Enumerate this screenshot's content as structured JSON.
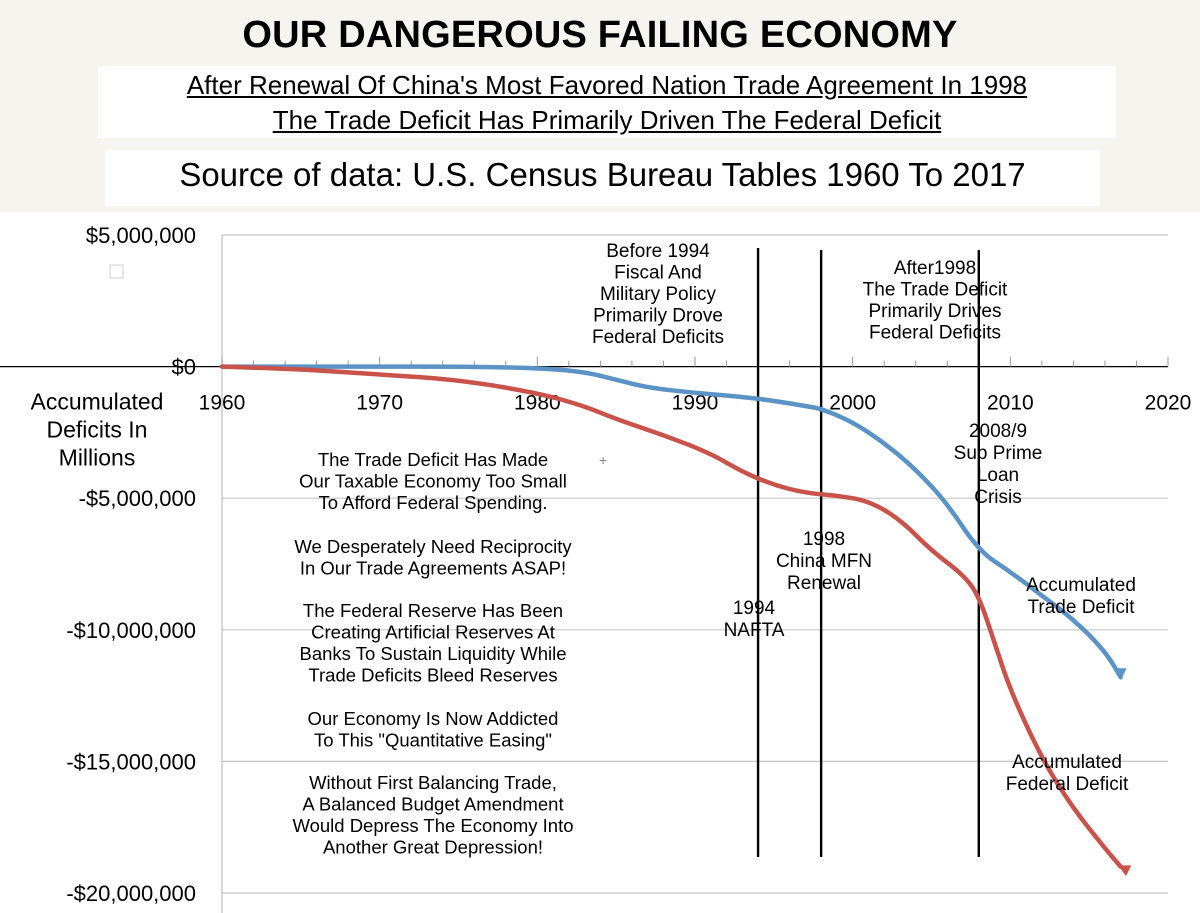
{
  "header": {
    "title": "OUR DANGEROUS FAILING ECONOMY",
    "subtitle_line1": "After Renewal Of China's Most Favored Nation Trade Agreement In 1998",
    "subtitle_line2": "The Trade Deficit Has Primarily Driven The Federal Deficit",
    "source": "Source of data:  U.S. Census Bureau Tables 1960 To 2017"
  },
  "chart_data": {
    "type": "line",
    "title": "OUR DANGEROUS FAILING ECONOMY",
    "ylabel_lines": [
      "Accumulated",
      "Deficits In",
      "Millions"
    ],
    "xlabel": "",
    "xlim": [
      1960,
      2020
    ],
    "ylim": [
      -20000000,
      5000000
    ],
    "x_ticks": [
      1960,
      1970,
      1980,
      1990,
      2000,
      2010,
      2020
    ],
    "x_tick_labels": [
      "1960",
      "1970",
      "1980",
      "1990",
      "2000",
      "2010",
      "2020"
    ],
    "y_ticks": [
      5000000,
      0,
      -5000000,
      -10000000,
      -15000000,
      -20000000
    ],
    "y_tick_labels": [
      "$5,000,000",
      "$0",
      "-$5,000,000",
      "-$10,000,000",
      "-$15,000,000",
      "-$20,000,000"
    ],
    "grid": true,
    "series": [
      {
        "name": "Accumulated Trade Deficit",
        "label_lines": [
          "Accumulated",
          "Trade Deficit"
        ],
        "color": "#5b93c7",
        "x": [
          1960,
          1965,
          1970,
          1975,
          1980,
          1983,
          1985,
          1987,
          1990,
          1993,
          1995,
          1997,
          1998,
          2000,
          2002,
          2004,
          2006,
          2008,
          2010,
          2012,
          2014,
          2016,
          2017
        ],
        "values": [
          0,
          0,
          0,
          0,
          -50000,
          -200000,
          -500000,
          -800000,
          -1000000,
          -1150000,
          -1300000,
          -1500000,
          -1600000,
          -2100000,
          -2900000,
          -3900000,
          -5200000,
          -7000000,
          -7800000,
          -8700000,
          -9600000,
          -10800000,
          -11800000
        ]
      },
      {
        "name": "Accumulated Federal Deficit",
        "label_lines": [
          "Accumulated",
          "Federal Deficit"
        ],
        "color": "#c9534b",
        "x": [
          1960,
          1965,
          1970,
          1975,
          1980,
          1983,
          1985,
          1988,
          1991,
          1993,
          1995,
          1997,
          1999,
          2001,
          2003,
          2005,
          2007,
          2008,
          2009,
          2010,
          2012,
          2014,
          2016,
          2017
        ],
        "values": [
          0,
          -100000,
          -300000,
          -500000,
          -1000000,
          -1500000,
          -2000000,
          -2600000,
          -3300000,
          -4000000,
          -4500000,
          -4800000,
          -4900000,
          -5100000,
          -5800000,
          -7000000,
          -7900000,
          -8700000,
          -10500000,
          -12300000,
          -14900000,
          -16800000,
          -18300000,
          -19000000
        ]
      }
    ],
    "event_lines": [
      {
        "year": 1994,
        "label_lines": [
          "1994",
          "NAFTA"
        ]
      },
      {
        "year": 1998,
        "label_lines": [
          "1998",
          "China MFN",
          "Renewal"
        ]
      },
      {
        "year": 2008,
        "label_lines": [
          "2008/9",
          "Sub Prime",
          "Loan",
          "Crisis"
        ]
      }
    ],
    "annotations": {
      "before_1994": [
        "Before 1994",
        "Fiscal And",
        "Military Policy",
        "Primarily Drove",
        "Federal Deficits"
      ],
      "after_1998": [
        "After1998",
        "The Trade Deficit",
        "Primarily Drives",
        "Federal  Deficits"
      ]
    },
    "commentary": [
      [
        "The Trade Deficit Has Made",
        "Our Taxable Economy Too Small",
        "To Afford Federal Spending."
      ],
      [
        "We Desperately Need Reciprocity",
        "In Our Trade Agreements ASAP!"
      ],
      [
        "The Federal Reserve Has Been",
        "Creating Artificial Reserves At",
        "Banks To Sustain Liquidity While",
        "Trade Deficits Bleed Reserves"
      ],
      [
        "Our Economy Is Now Addicted",
        "To This \"Quantitative Easing\""
      ],
      [
        "Without First Balancing Trade,",
        "A Balanced Budget Amendment",
        "Would Depress The Economy Into",
        "Another Great Depression!"
      ]
    ]
  }
}
